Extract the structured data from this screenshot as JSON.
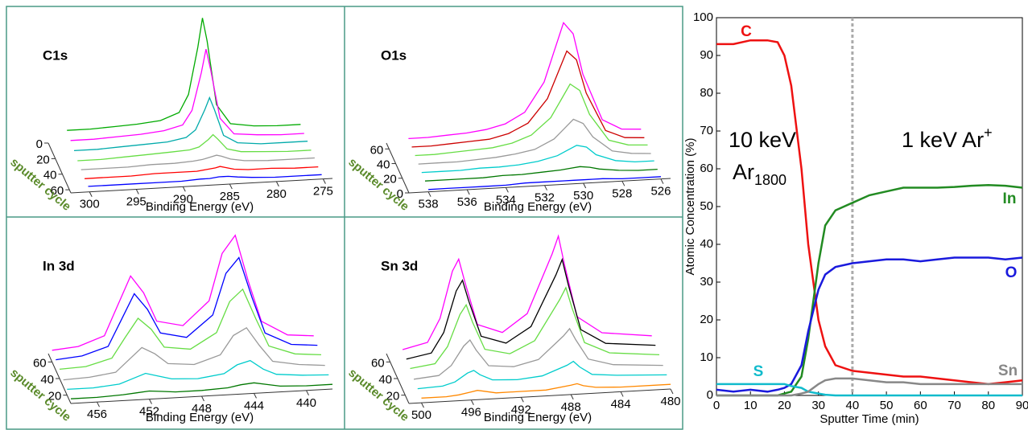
{
  "chart_data": [
    {
      "type": "waterfall",
      "title": "C1s",
      "xlabel": "Binding Energy (eV)",
      "zlabel": "sputter cycle",
      "xlim": [
        302,
        274
      ],
      "xticks": [
        300,
        295,
        290,
        285,
        280,
        275
      ],
      "zlim": [
        0,
        64
      ],
      "zticks": [
        0,
        20,
        40,
        60
      ],
      "ylim": [
        0,
        100
      ],
      "x": [
        300,
        297.5,
        295,
        292.5,
        290,
        288,
        287,
        286,
        285.5,
        285,
        284,
        282.5,
        280,
        277.5,
        275
      ],
      "series": [
        {
          "z": 0,
          "color": "#00aa00",
          "values": [
            10,
            10,
            11,
            12,
            14,
            20,
            35,
            75,
            100,
            80,
            25,
            8,
            5,
            4,
            4
          ]
        },
        {
          "z": 10,
          "color": "#ff00ff",
          "values": [
            8,
            8,
            9,
            10,
            12,
            16,
            28,
            60,
            80,
            62,
            20,
            6,
            4,
            3,
            3
          ]
        },
        {
          "z": 20,
          "color": "#00aaaa",
          "values": [
            6,
            6,
            7,
            8,
            9,
            12,
            18,
            35,
            45,
            35,
            12,
            5,
            3,
            3,
            3
          ]
        },
        {
          "z": 30,
          "color": "#66dd44",
          "values": [
            4,
            4,
            5,
            6,
            7,
            8,
            10,
            16,
            20,
            16,
            7,
            4,
            3,
            2,
            2
          ]
        },
        {
          "z": 40,
          "color": "#999999",
          "values": [
            3,
            3,
            3,
            4,
            4,
            5,
            6,
            8,
            9,
            8,
            5,
            3,
            2,
            2,
            2
          ]
        },
        {
          "z": 50,
          "color": "#ff0000",
          "values": [
            2,
            2,
            2,
            3,
            3,
            3,
            4,
            5,
            6,
            5,
            3,
            2,
            2,
            1,
            1
          ]
        },
        {
          "z": 60,
          "color": "#0000ff",
          "values": [
            2,
            2,
            2,
            2,
            2,
            3,
            3,
            4,
            4,
            4,
            3,
            2,
            1,
            1,
            1
          ]
        }
      ]
    },
    {
      "type": "waterfall",
      "title": "O1s",
      "xlabel": "Binding Energy (eV)",
      "zlabel": "sputter cycle",
      "xlim": [
        539,
        525.5
      ],
      "xticks": [
        538,
        536,
        534,
        532,
        530,
        528,
        526
      ],
      "zlim": [
        68,
        0
      ],
      "zticks": [
        60,
        40,
        20,
        0
      ],
      "ylim": [
        0,
        100
      ],
      "x": [
        538,
        537,
        536,
        535,
        534,
        533,
        532,
        531,
        530.5,
        530,
        529.5,
        529,
        528,
        527,
        526
      ],
      "series": [
        {
          "z": 60,
          "color": "#ff00ff",
          "values": [
            8,
            8,
            9,
            10,
            12,
            16,
            25,
            50,
            75,
            100,
            90,
            55,
            15,
            6,
            5
          ]
        },
        {
          "z": 50,
          "color": "#cc0000",
          "values": [
            7,
            7,
            8,
            9,
            10,
            14,
            22,
            42,
            62,
            82,
            74,
            45,
            12,
            5,
            4
          ]
        },
        {
          "z": 40,
          "color": "#66dd44",
          "values": [
            6,
            6,
            7,
            8,
            9,
            12,
            18,
            32,
            46,
            60,
            54,
            33,
            10,
            5,
            4
          ]
        },
        {
          "z": 30,
          "color": "#999999",
          "values": [
            5,
            5,
            5,
            6,
            7,
            9,
            12,
            20,
            28,
            36,
            32,
            20,
            7,
            4,
            3
          ]
        },
        {
          "z": 20,
          "color": "#00cccc",
          "values": [
            4,
            4,
            4,
            5,
            5,
            6,
            8,
            12,
            16,
            20,
            18,
            11,
            5,
            3,
            3
          ]
        },
        {
          "z": 10,
          "color": "#007700",
          "values": [
            3,
            3,
            3,
            3,
            4,
            4,
            5,
            6,
            7,
            8,
            7,
            5,
            3,
            2,
            2
          ]
        },
        {
          "z": 0,
          "color": "#0000ff",
          "values": [
            2,
            2,
            2,
            2,
            2,
            3,
            3,
            3,
            3,
            3,
            3,
            3,
            2,
            2,
            2
          ]
        }
      ]
    },
    {
      "type": "waterfall",
      "title": "In 3d",
      "xlabel": "Binding Energy (eV)",
      "zlabel": "sputter cycle",
      "xlim": [
        458,
        438
      ],
      "xticks": [
        456,
        452,
        448,
        444,
        440
      ],
      "zlim": [
        70,
        10
      ],
      "zticks": [
        60,
        40,
        20
      ],
      "ylim": [
        0,
        100
      ],
      "x": [
        458,
        456,
        454,
        453,
        452,
        451,
        450,
        448,
        446,
        445,
        444,
        443,
        442,
        440,
        438
      ],
      "series": [
        {
          "z": 60,
          "color": "#ff00ff",
          "values": [
            10,
            12,
            20,
            45,
            70,
            55,
            30,
            25,
            45,
            85,
            100,
            60,
            25,
            12,
            10
          ]
        },
        {
          "z": 50,
          "color": "#0000ff",
          "values": [
            9,
            11,
            18,
            40,
            62,
            48,
            27,
            22,
            40,
            75,
            88,
            53,
            22,
            11,
            9
          ]
        },
        {
          "z": 40,
          "color": "#66dd44",
          "values": [
            8,
            9,
            15,
            32,
            48,
            38,
            22,
            19,
            32,
            58,
            68,
            42,
            18,
            10,
            8
          ]
        },
        {
          "z": 30,
          "color": "#999999",
          "values": [
            6,
            7,
            10,
            20,
            30,
            24,
            15,
            13,
            20,
            36,
            42,
            26,
            12,
            8,
            6
          ]
        },
        {
          "z": 20,
          "color": "#00cccc",
          "values": [
            5,
            5,
            7,
            11,
            15,
            12,
            9,
            8,
            11,
            18,
            21,
            13,
            8,
            6,
            5
          ]
        },
        {
          "z": 10,
          "color": "#007700",
          "values": [
            4,
            4,
            5,
            6,
            7,
            6,
            5,
            5,
            6,
            8,
            9,
            7,
            5,
            4,
            4
          ]
        }
      ]
    },
    {
      "type": "waterfall",
      "title": "Sn 3d",
      "xlabel": "Binding Energy (eV)",
      "zlabel": "sputter cycle",
      "xlim": [
        501,
        480
      ],
      "xticks": [
        500,
        496,
        492,
        488,
        484,
        480
      ],
      "zlim": [
        70,
        10
      ],
      "zticks": [
        60,
        40,
        20
      ],
      "ylim": [
        0,
        100
      ],
      "x": [
        500,
        498,
        497,
        496,
        495.5,
        495,
        494,
        492,
        490,
        488,
        487.5,
        487,
        486,
        484,
        480
      ],
      "series": [
        {
          "z": 60,
          "color": "#ff00ff",
          "values": [
            10,
            15,
            35,
            75,
            85,
            65,
            28,
            20,
            35,
            85,
            100,
            75,
            30,
            15,
            10
          ]
        },
        {
          "z": 50,
          "color": "#000000",
          "values": [
            9,
            13,
            30,
            65,
            74,
            56,
            25,
            18,
            31,
            74,
            87,
            65,
            26,
            13,
            9
          ]
        },
        {
          "z": 40,
          "color": "#66dd44",
          "values": [
            8,
            11,
            25,
            52,
            60,
            45,
            21,
            16,
            26,
            60,
            70,
            52,
            22,
            12,
            8
          ]
        },
        {
          "z": 30,
          "color": "#999999",
          "values": [
            6,
            8,
            16,
            32,
            37,
            28,
            14,
            12,
            17,
            36,
            42,
            32,
            15,
            9,
            6
          ]
        },
        {
          "z": 20,
          "color": "#00cccc",
          "values": [
            5,
            6,
            9,
            16,
            18,
            14,
            9,
            8,
            10,
            18,
            21,
            16,
            9,
            7,
            5
          ]
        },
        {
          "z": 10,
          "color": "#ff8800",
          "values": [
            4,
            4,
            5,
            7,
            8,
            7,
            5,
            5,
            5,
            8,
            9,
            7,
            5,
            4,
            4
          ]
        }
      ]
    },
    {
      "type": "line",
      "xlabel": "Sputter Time (min)",
      "ylabel": "Atomic Concentration (%)",
      "xlim": [
        0,
        90
      ],
      "ylim": [
        0,
        100
      ],
      "xticks": [
        0,
        10,
        20,
        30,
        40,
        50,
        60,
        70,
        80,
        90
      ],
      "yticks": [
        0,
        10,
        20,
        30,
        40,
        50,
        60,
        70,
        80,
        90,
        100
      ],
      "vline": 40,
      "annotations": [
        {
          "text": "10 keV"
        },
        {
          "text": "Ar",
          "sub": "1800"
        },
        {
          "text": "1 keV Ar",
          "sup": "+"
        }
      ],
      "x": [
        0,
        5,
        10,
        15,
        18,
        20,
        22,
        25,
        27,
        30,
        32,
        35,
        40,
        45,
        50,
        55,
        60,
        65,
        70,
        75,
        80,
        85,
        90
      ],
      "series": [
        {
          "name": "C",
          "color": "#ee1111",
          "values": [
            93,
            93,
            94,
            94,
            93.5,
            90,
            82,
            60,
            40,
            20,
            13,
            8,
            6.5,
            6,
            5.5,
            5,
            5,
            4.5,
            4,
            3.5,
            3,
            3.5,
            4
          ]
        },
        {
          "name": "In",
          "color": "#228b22",
          "values": [
            0,
            0,
            0,
            0,
            0,
            0.5,
            1,
            5,
            15,
            35,
            45,
            49,
            51,
            53,
            54,
            55,
            55,
            55,
            55.2,
            55.5,
            55.7,
            55.5,
            55
          ]
        },
        {
          "name": "O",
          "color": "#1a1add",
          "values": [
            1.5,
            1,
            1.5,
            1,
            1.5,
            2,
            3,
            8,
            17,
            28,
            32,
            34,
            35,
            35.5,
            36,
            36,
            35.5,
            36,
            36.5,
            36.5,
            36.5,
            36,
            36.5
          ]
        },
        {
          "name": "S",
          "color": "#11bbcc",
          "values": [
            3,
            3,
            3,
            3,
            3,
            3,
            2.5,
            2,
            1,
            0.5,
            0.2,
            0,
            0,
            0,
            0,
            0,
            0,
            0,
            0,
            0,
            0,
            0,
            0
          ]
        },
        {
          "name": "Sn",
          "color": "#888888",
          "values": [
            0,
            0,
            0,
            0,
            0,
            0,
            0,
            0.5,
            1,
            3,
            4,
            4.5,
            4.5,
            4,
            3.5,
            3.5,
            3,
            3,
            3,
            3,
            3,
            3,
            3
          ]
        }
      ]
    }
  ]
}
